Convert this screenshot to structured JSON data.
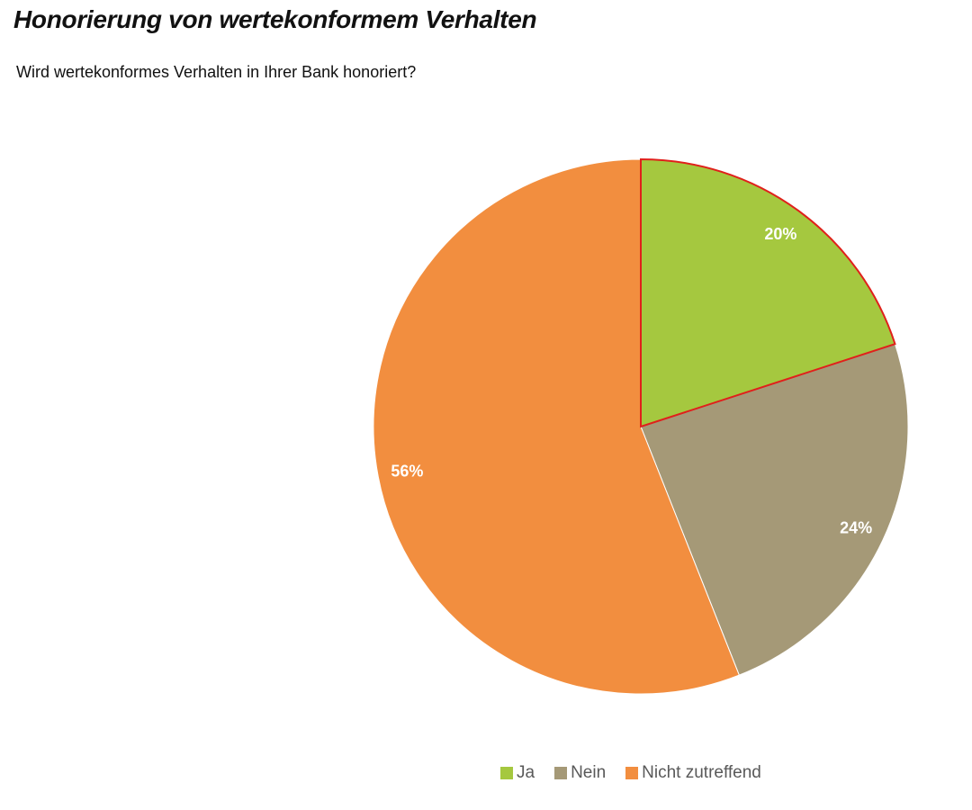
{
  "chart_data": {
    "type": "pie",
    "title": "Honorierung von wertekonformem Verhalten",
    "subtitle": "Wird wertekonformes Verhalten in Ihrer Bank honoriert?",
    "categories": [
      "Ja",
      "Nein",
      "Nicht zutreffend"
    ],
    "values": [
      20,
      24,
      56
    ],
    "data_labels": [
      "20%",
      "24%",
      "56%"
    ],
    "colors": [
      "#a5c83f",
      "#a59977",
      "#f28e3f"
    ],
    "highlight_outline_color": "#e0201b",
    "legend_position": "bottom"
  }
}
